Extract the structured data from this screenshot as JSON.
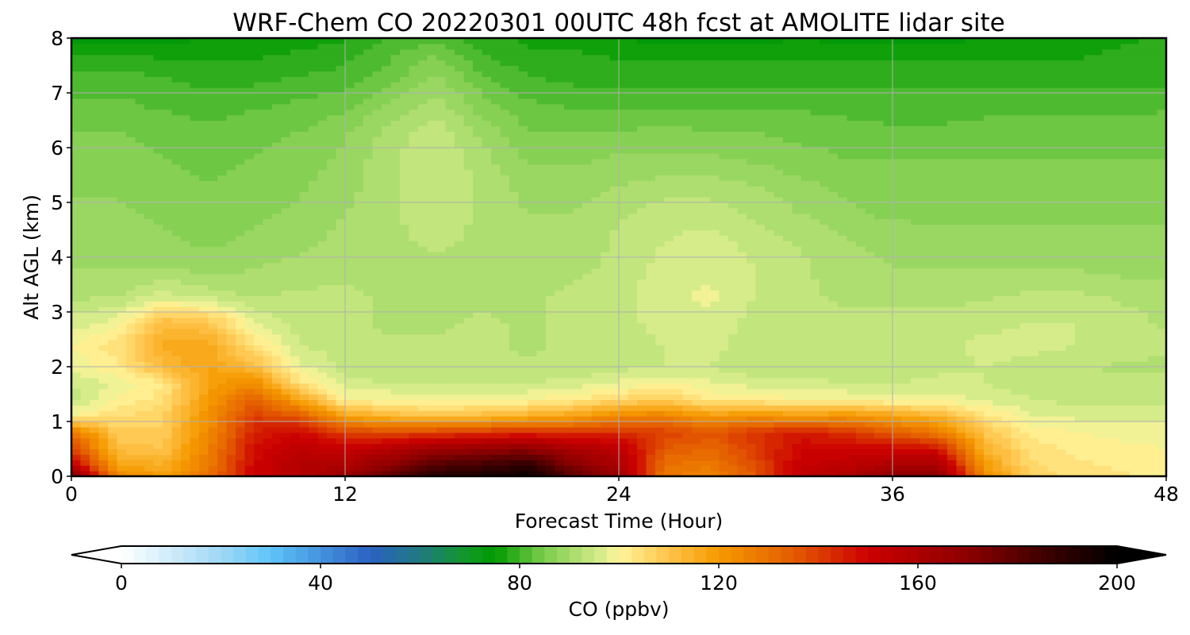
{
  "chart_data": {
    "type": "heatmap",
    "title": "WRF-Chem CO  20220301 00UTC 48h fcst at AMOLITE lidar site",
    "xlabel": "Forecast Time (Hour)",
    "ylabel": "Alt AGL (km)",
    "xlim": [
      0,
      48
    ],
    "ylim": [
      0,
      8
    ],
    "x_ticks": [
      "0",
      "12",
      "24",
      "36",
      "48"
    ],
    "y_ticks": [
      "0",
      "1",
      "2",
      "3",
      "4",
      "5",
      "6",
      "7",
      "8"
    ],
    "grid": true,
    "x": [
      0,
      2,
      4,
      6,
      8,
      10,
      12,
      14,
      16,
      18,
      20,
      22,
      24,
      26,
      28,
      30,
      32,
      34,
      36,
      38,
      40,
      42,
      44,
      46,
      48
    ],
    "y": [
      0,
      0.2,
      0.5,
      0.8,
      1.1,
      1.4,
      1.7,
      2.0,
      2.4,
      2.8,
      3.3,
      3.8,
      4.3,
      4.8,
      5.3,
      5.8,
      6.3,
      6.8,
      7.3,
      7.7,
      8.0
    ],
    "z": [
      [
        175,
        125,
        120,
        130,
        150,
        158,
        165,
        180,
        192,
        195,
        198,
        180,
        165,
        128,
        125,
        135,
        155,
        160,
        170,
        170,
        125,
        108,
        104,
        103,
        102
      ],
      [
        155,
        118,
        115,
        128,
        150,
        158,
        160,
        170,
        182,
        185,
        190,
        172,
        160,
        130,
        128,
        138,
        152,
        155,
        160,
        162,
        120,
        106,
        103,
        102,
        101
      ],
      [
        140,
        112,
        110,
        126,
        148,
        155,
        152,
        158,
        165,
        168,
        170,
        160,
        155,
        135,
        132,
        140,
        150,
        150,
        150,
        148,
        115,
        104,
        102,
        101,
        100
      ],
      [
        130,
        108,
        108,
        124,
        145,
        150,
        140,
        138,
        140,
        142,
        144,
        142,
        143,
        140,
        136,
        142,
        146,
        142,
        135,
        128,
        110,
        102,
        100,
        99,
        99
      ],
      [
        100,
        105,
        107,
        122,
        140,
        135,
        118,
        113,
        110,
        112,
        115,
        118,
        125,
        126,
        120,
        122,
        120,
        122,
        118,
        114,
        104,
        98,
        97,
        97,
        96
      ],
      [
        94,
        100,
        104,
        120,
        134,
        118,
        100,
        100,
        98,
        99,
        100,
        102,
        106,
        108,
        102,
        102,
        100,
        100,
        99,
        99,
        97,
        95,
        94,
        94,
        94
      ],
      [
        95,
        98,
        102,
        118,
        124,
        104,
        96,
        95,
        95,
        95,
        95,
        96,
        98,
        100,
        98,
        96,
        96,
        95,
        95,
        96,
        95,
        94,
        93,
        93,
        93
      ],
      [
        98,
        102,
        112,
        118,
        112,
        98,
        94,
        93,
        93,
        93,
        93,
        93,
        94,
        95,
        95,
        93,
        93,
        93,
        93,
        94,
        95,
        94,
        93,
        92,
        92
      ],
      [
        100,
        104,
        116,
        116,
        104,
        95,
        94,
        93,
        93,
        93,
        92,
        93,
        94,
        95,
        96,
        93,
        93,
        94,
        94,
        94,
        96,
        96,
        95,
        94,
        93
      ],
      [
        96,
        99,
        112,
        110,
        98,
        94,
        93,
        92,
        92,
        93,
        92,
        93,
        94,
        96,
        97,
        94,
        94,
        93,
        93,
        93,
        94,
        95,
        95,
        94,
        92
      ],
      [
        92,
        92,
        96,
        94,
        92,
        93,
        93,
        92,
        92,
        92,
        92,
        93,
        94,
        97,
        98,
        95,
        93,
        92,
        92,
        92,
        92,
        93,
        93,
        92,
        91
      ],
      [
        90,
        90,
        90,
        89,
        90,
        91,
        92,
        92,
        92,
        92,
        92,
        92,
        93,
        96,
        97,
        95,
        93,
        91,
        90,
        90,
        90,
        90,
        90,
        89,
        89
      ],
      [
        89,
        89,
        88,
        87,
        88,
        89,
        91,
        92,
        93,
        92,
        91,
        91,
        93,
        95,
        96,
        94,
        92,
        90,
        89,
        88,
        88,
        88,
        88,
        88,
        88
      ],
      [
        88,
        88,
        87,
        86,
        87,
        88,
        90,
        92,
        94,
        92,
        90,
        90,
        92,
        94,
        94,
        92,
        90,
        88,
        87,
        87,
        87,
        87,
        87,
        87,
        87
      ],
      [
        87,
        87,
        86,
        85,
        86,
        87,
        89,
        92,
        95,
        92,
        89,
        89,
        90,
        91,
        91,
        90,
        88,
        87,
        86,
        86,
        86,
        86,
        86,
        86,
        86
      ],
      [
        86,
        86,
        85,
        84,
        85,
        86,
        88,
        92,
        95,
        91,
        87,
        87,
        88,
        88,
        88,
        87,
        86,
        85,
        85,
        85,
        85,
        85,
        85,
        85,
        85
      ],
      [
        85,
        85,
        84,
        83,
        84,
        85,
        87,
        91,
        94,
        89,
        85,
        85,
        85,
        86,
        85,
        85,
        84,
        84,
        83,
        83,
        84,
        84,
        84,
        84,
        84
      ],
      [
        83,
        83,
        82,
        81,
        82,
        83,
        84,
        88,
        91,
        86,
        83,
        82,
        82,
        82,
        82,
        82,
        82,
        81,
        81,
        81,
        81,
        81,
        81,
        81,
        82
      ],
      [
        81,
        81,
        80,
        79,
        79,
        80,
        81,
        84,
        88,
        83,
        80,
        79,
        79,
        79,
        79,
        79,
        79,
        79,
        79,
        79,
        79,
        79,
        79,
        79,
        79
      ],
      [
        77,
        78,
        77,
        77,
        77,
        78,
        79,
        82,
        85,
        80,
        78,
        78,
        77,
        77,
        77,
        77,
        77,
        77,
        77,
        77,
        77,
        77,
        77,
        78,
        78
      ],
      [
        73,
        74,
        74,
        75,
        75,
        76,
        77,
        80,
        82,
        78,
        77,
        76,
        75,
        74,
        74,
        74,
        75,
        74,
        73,
        74,
        75,
        75,
        76,
        77,
        78
      ]
    ],
    "colorbar": {
      "label": "CO  (ppbv)",
      "ticks": [
        "0",
        "40",
        "80",
        "120",
        "160",
        "200"
      ],
      "min": 0,
      "max": 200,
      "step": 2.5,
      "extend": "both",
      "colors": [
        {
          "v": 0,
          "c": "#ffffff"
        },
        {
          "v": 20,
          "c": "#9fd8f5"
        },
        {
          "v": 30,
          "c": "#5ec4f8"
        },
        {
          "v": 50,
          "c": "#2b61c2"
        },
        {
          "v": 60,
          "c": "#207a80"
        },
        {
          "v": 70,
          "c": "#119a22"
        },
        {
          "v": 75,
          "c": "#009900"
        },
        {
          "v": 85,
          "c": "#7ccd4d"
        },
        {
          "v": 97,
          "c": "#dcee8f"
        },
        {
          "v": 100,
          "c": "#fff59a"
        },
        {
          "v": 110,
          "c": "#ffc34a"
        },
        {
          "v": 120,
          "c": "#f59a00"
        },
        {
          "v": 135,
          "c": "#e45c00"
        },
        {
          "v": 150,
          "c": "#cc0000"
        },
        {
          "v": 170,
          "c": "#8c0000"
        },
        {
          "v": 185,
          "c": "#400000"
        },
        {
          "v": 200,
          "c": "#000000"
        }
      ]
    }
  }
}
